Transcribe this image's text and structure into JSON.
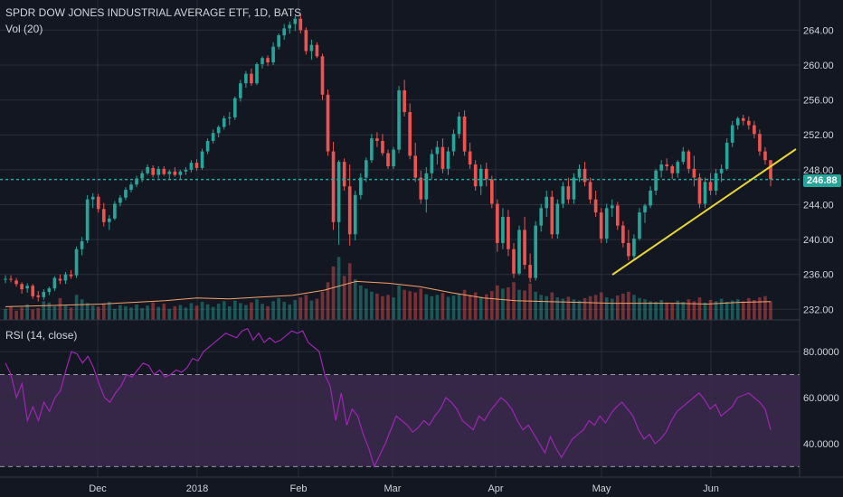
{
  "chart_data": [
    {
      "type": "candlestick",
      "title": "SPDR DOW JONES INDUSTRIAL AVERAGE ETF, 1D, BATS",
      "volume_label": "Vol (20)",
      "last_price": "246.88",
      "y_ticks": [
        "264.00",
        "260.00",
        "256.00",
        "252.00",
        "248.00",
        "244.00",
        "240.00",
        "236.00",
        "232.00"
      ],
      "x_ticks": [
        "Dec",
        "2018",
        "Feb",
        "Mar",
        "Apr",
        "May",
        "Jun"
      ],
      "ylim": [
        231,
        266
      ],
      "candles": [
        [
          235.5,
          235.9,
          235.0,
          235.5
        ],
        [
          235.5,
          235.9,
          235.1,
          235.4
        ],
        [
          235.3,
          235.6,
          234.6,
          234.9
        ],
        [
          234.9,
          235.1,
          233.8,
          234.3
        ],
        [
          234.4,
          235.0,
          233.9,
          234.7
        ],
        [
          234.7,
          234.9,
          233.2,
          233.5
        ],
        [
          233.6,
          234.1,
          232.9,
          233.4
        ],
        [
          233.4,
          234.3,
          233.1,
          234.0
        ],
        [
          234.0,
          234.6,
          233.6,
          234.4
        ],
        [
          234.4,
          235.8,
          234.1,
          235.6
        ],
        [
          235.5,
          236.0,
          234.9,
          235.3
        ],
        [
          235.3,
          236.3,
          234.9,
          236.0
        ],
        [
          236.0,
          236.5,
          235.5,
          235.8
        ],
        [
          235.9,
          239.2,
          235.6,
          238.9
        ],
        [
          238.9,
          240.3,
          238.2,
          239.8
        ],
        [
          239.9,
          245.1,
          239.6,
          244.6
        ],
        [
          244.6,
          245.3,
          243.6,
          244.9
        ],
        [
          244.9,
          245.2,
          243.1,
          243.5
        ],
        [
          243.5,
          244.2,
          241.5,
          242.0
        ],
        [
          242.0,
          242.8,
          241.1,
          242.4
        ],
        [
          242.4,
          244.4,
          242.2,
          244.1
        ],
        [
          244.2,
          245.1,
          243.8,
          244.8
        ],
        [
          244.8,
          246.0,
          244.5,
          245.7
        ],
        [
          245.7,
          246.6,
          245.4,
          246.3
        ],
        [
          246.3,
          247.3,
          246.0,
          247.0
        ],
        [
          247.0,
          247.9,
          246.6,
          247.6
        ],
        [
          247.6,
          248.6,
          247.4,
          248.3
        ],
        [
          248.2,
          248.5,
          247.1,
          247.4
        ],
        [
          247.4,
          248.4,
          247.0,
          248.1
        ],
        [
          248.1,
          248.4,
          247.3,
          247.5
        ],
        [
          247.5,
          248.0,
          246.8,
          247.8
        ],
        [
          247.8,
          248.3,
          247.2,
          247.4
        ],
        [
          247.4,
          248.0,
          246.9,
          247.8
        ],
        [
          247.8,
          248.3,
          247.4,
          248.0
        ],
        [
          248.0,
          249.1,
          247.7,
          248.8
        ],
        [
          248.8,
          249.2,
          247.9,
          248.2
        ],
        [
          248.2,
          250.4,
          248.0,
          250.1
        ],
        [
          250.1,
          251.6,
          249.8,
          251.3
        ],
        [
          251.3,
          252.6,
          251.0,
          252.2
        ],
        [
          252.2,
          253.1,
          251.7,
          252.9
        ],
        [
          252.9,
          254.2,
          252.6,
          253.9
        ],
        [
          253.9,
          254.6,
          253.1,
          254.0
        ],
        [
          254.0,
          256.4,
          253.7,
          256.2
        ],
        [
          256.2,
          258.3,
          255.8,
          257.9
        ],
        [
          257.9,
          259.3,
          257.4,
          259.0
        ],
        [
          259.0,
          259.6,
          257.6,
          257.9
        ],
        [
          257.9,
          260.3,
          257.7,
          260.1
        ],
        [
          260.1,
          261.0,
          259.6,
          260.8
        ],
        [
          260.8,
          261.1,
          259.9,
          260.3
        ],
        [
          260.3,
          262.6,
          260.0,
          262.1
        ],
        [
          262.1,
          263.6,
          261.8,
          263.4
        ],
        [
          263.4,
          264.7,
          262.9,
          264.2
        ],
        [
          264.2,
          265.0,
          263.6,
          264.6
        ],
        [
          264.7,
          265.6,
          263.9,
          265.3
        ],
        [
          265.3,
          265.8,
          263.6,
          264.0
        ],
        [
          264.0,
          264.3,
          261.2,
          261.6
        ],
        [
          261.6,
          262.9,
          260.6,
          262.3
        ],
        [
          262.3,
          262.6,
          260.8,
          261.0
        ],
        [
          261.0,
          261.3,
          256.0,
          256.6
        ],
        [
          256.6,
          257.2,
          249.6,
          250.1
        ],
        [
          250.1,
          251.2,
          241.1,
          242.0
        ],
        [
          242.0,
          249.1,
          239.4,
          248.9
        ],
        [
          248.9,
          249.3,
          245.6,
          246.1
        ],
        [
          246.1,
          248.6,
          239.3,
          240.6
        ],
        [
          240.6,
          245.6,
          239.9,
          245.1
        ],
        [
          245.1,
          247.6,
          244.6,
          247.1
        ],
        [
          247.1,
          249.4,
          246.6,
          249.1
        ],
        [
          249.1,
          252.1,
          248.8,
          251.6
        ],
        [
          251.6,
          252.3,
          250.6,
          251.3
        ],
        [
          251.3,
          252.1,
          249.6,
          249.9
        ],
        [
          249.9,
          250.3,
          248.1,
          248.4
        ],
        [
          248.4,
          250.6,
          248.1,
          250.3
        ],
        [
          250.3,
          257.6,
          249.9,
          257.1
        ],
        [
          257.1,
          258.3,
          254.1,
          254.6
        ],
        [
          254.6,
          255.6,
          249.2,
          249.6
        ],
        [
          249.6,
          251.1,
          246.6,
          247.1
        ],
        [
          247.1,
          247.9,
          244.1,
          244.6
        ],
        [
          244.6,
          248.3,
          243.1,
          247.6
        ],
        [
          247.6,
          250.3,
          246.9,
          249.8
        ],
        [
          249.8,
          251.3,
          248.6,
          250.6
        ],
        [
          250.6,
          251.6,
          247.6,
          248.1
        ],
        [
          248.1,
          250.6,
          247.4,
          250.1
        ],
        [
          250.1,
          252.6,
          249.6,
          252.1
        ],
        [
          252.1,
          254.6,
          251.6,
          254.1
        ],
        [
          254.1,
          254.8,
          249.6,
          250.1
        ],
        [
          250.1,
          251.1,
          248.1,
          248.6
        ],
        [
          248.6,
          249.1,
          245.6,
          246.1
        ],
        [
          246.1,
          248.6,
          245.1,
          248.1
        ],
        [
          248.1,
          248.8,
          246.1,
          246.9
        ],
        [
          246.9,
          247.3,
          243.6,
          244.1
        ],
        [
          244.1,
          244.6,
          238.6,
          239.6
        ],
        [
          239.6,
          243.6,
          238.9,
          242.6
        ],
        [
          242.6,
          243.4,
          238.1,
          238.9
        ],
        [
          238.9,
          239.6,
          235.6,
          236.1
        ],
        [
          236.1,
          241.6,
          235.9,
          241.1
        ],
        [
          241.1,
          242.6,
          236.6,
          237.1
        ],
        [
          237.1,
          238.4,
          235.1,
          235.6
        ],
        [
          235.6,
          242.1,
          235.3,
          241.6
        ],
        [
          241.6,
          244.1,
          240.9,
          243.6
        ],
        [
          243.6,
          245.6,
          242.6,
          244.9
        ],
        [
          244.9,
          245.6,
          240.1,
          240.6
        ],
        [
          240.6,
          244.6,
          240.1,
          244.1
        ],
        [
          244.1,
          246.6,
          243.6,
          246.1
        ],
        [
          246.1,
          247.1,
          244.1,
          244.6
        ],
        [
          244.6,
          247.6,
          244.1,
          247.1
        ],
        [
          247.1,
          248.6,
          246.6,
          248.1
        ],
        [
          248.1,
          248.9,
          246.1,
          246.6
        ],
        [
          246.6,
          247.1,
          244.1,
          244.6
        ],
        [
          244.6,
          245.6,
          242.6,
          243.1
        ],
        [
          243.1,
          243.6,
          239.6,
          240.1
        ],
        [
          240.1,
          244.1,
          239.6,
          243.6
        ],
        [
          243.6,
          244.6,
          242.6,
          243.9
        ],
        [
          243.9,
          244.3,
          241.1,
          241.6
        ],
        [
          241.6,
          242.1,
          239.1,
          239.6
        ],
        [
          239.6,
          241.1,
          237.6,
          238.1
        ],
        [
          238.1,
          240.6,
          237.6,
          240.1
        ],
        [
          240.1,
          243.6,
          239.9,
          243.1
        ],
        [
          243.1,
          244.1,
          241.9,
          243.9
        ],
        [
          243.9,
          246.1,
          243.6,
          245.6
        ],
        [
          245.6,
          248.1,
          245.1,
          247.9
        ],
        [
          247.9,
          249.1,
          247.1,
          248.6
        ],
        [
          248.6,
          249.3,
          247.9,
          248.4
        ],
        [
          248.4,
          248.6,
          246.9,
          247.6
        ],
        [
          247.6,
          249.1,
          247.1,
          248.9
        ],
        [
          248.9,
          250.6,
          248.6,
          250.1
        ],
        [
          250.1,
          250.3,
          247.6,
          248.1
        ],
        [
          248.1,
          249.6,
          246.1,
          247.1
        ],
        [
          247.1,
          247.6,
          243.6,
          244.1
        ],
        [
          244.1,
          247.1,
          243.6,
          246.6
        ],
        [
          246.6,
          247.6,
          245.1,
          245.6
        ],
        [
          245.6,
          248.1,
          245.1,
          247.6
        ],
        [
          247.6,
          248.6,
          246.6,
          248.1
        ],
        [
          248.1,
          251.6,
          247.9,
          251.1
        ],
        [
          251.1,
          253.6,
          250.6,
          253.1
        ],
        [
          253.1,
          254.1,
          252.6,
          253.9
        ],
        [
          253.9,
          254.3,
          253.1,
          253.6
        ],
        [
          253.6,
          254.1,
          252.6,
          253.1
        ],
        [
          253.1,
          253.6,
          251.6,
          252.1
        ],
        [
          252.1,
          252.6,
          249.6,
          250.1
        ],
        [
          250.1,
          250.6,
          248.6,
          249.1
        ],
        [
          249.1,
          249.1,
          246.1,
          246.9
        ]
      ],
      "volume_ma_values": [
        232.3,
        232.4,
        232.5,
        232.6,
        232.8,
        233.0,
        233.3,
        233.2,
        233.4,
        233.6,
        234.2,
        235.2,
        235.0,
        234.6,
        233.9,
        233.3,
        233.0,
        232.9,
        232.8,
        232.7,
        232.7,
        232.7,
        232.6,
        232.8,
        232.9
      ],
      "volume_relative": [
        0.18,
        0.22,
        0.15,
        0.2,
        0.25,
        0.17,
        0.19,
        0.3,
        0.28,
        0.22,
        0.35,
        0.24,
        0.2,
        0.4,
        0.33,
        0.27,
        0.23,
        0.21,
        0.26,
        0.29,
        0.18,
        0.24,
        0.22,
        0.2,
        0.25,
        0.19,
        0.23,
        0.28,
        0.21,
        0.26,
        0.18,
        0.22,
        0.24,
        0.2,
        0.27,
        0.23,
        0.29,
        0.25,
        0.21,
        0.26,
        0.3,
        0.22,
        0.31,
        0.27,
        0.24,
        0.28,
        0.33,
        0.26,
        0.22,
        0.3,
        0.35,
        0.29,
        0.25,
        0.32,
        0.36,
        0.4,
        0.31,
        0.34,
        0.45,
        0.6,
        0.85,
        1.0,
        0.7,
        0.9,
        0.65,
        0.55,
        0.5,
        0.45,
        0.42,
        0.38,
        0.4,
        0.36,
        0.55,
        0.48,
        0.46,
        0.44,
        0.5,
        0.41,
        0.38,
        0.4,
        0.43,
        0.37,
        0.39,
        0.42,
        0.48,
        0.4,
        0.44,
        0.37,
        0.41,
        0.46,
        0.55,
        0.5,
        0.52,
        0.6,
        0.48,
        0.47,
        0.58,
        0.45,
        0.4,
        0.38,
        0.44,
        0.36,
        0.34,
        0.37,
        0.33,
        0.31,
        0.35,
        0.38,
        0.4,
        0.44,
        0.36,
        0.34,
        0.39,
        0.42,
        0.45,
        0.4,
        0.35,
        0.33,
        0.3,
        0.29,
        0.32,
        0.28,
        0.27,
        0.31,
        0.29,
        0.33,
        0.3,
        0.36,
        0.28,
        0.32,
        0.3,
        0.34,
        0.29,
        0.31,
        0.33,
        0.3,
        0.35,
        0.32,
        0.36,
        0.38,
        0.3
      ]
    },
    {
      "type": "line",
      "title": "RSI (14, close)",
      "y_ticks": [
        "80.0000",
        "60.0000",
        "40.0000"
      ],
      "ylim": [
        27,
        93
      ],
      "upper_band": 70,
      "lower_band": 30,
      "values": [
        75,
        70,
        60,
        66,
        50,
        56,
        50,
        58,
        54,
        60,
        63,
        72,
        80,
        79,
        75,
        78,
        73,
        66,
        60,
        58,
        62,
        65,
        70,
        69,
        72,
        75,
        74,
        70,
        72,
        69,
        70,
        72,
        71,
        73,
        77,
        76,
        80,
        82,
        84,
        86,
        88,
        87,
        86,
        89,
        90,
        85,
        88,
        84,
        86,
        84,
        85,
        87,
        89,
        88,
        89,
        84,
        82,
        80,
        70,
        65,
        50,
        62,
        48,
        55,
        52,
        44,
        38,
        30,
        35,
        40,
        46,
        52,
        50,
        48,
        45,
        47,
        50,
        48,
        52,
        55,
        60,
        58,
        55,
        50,
        48,
        46,
        52,
        50,
        54,
        57,
        60,
        58,
        55,
        50,
        46,
        48,
        44,
        40,
        36,
        43,
        38,
        34,
        38,
        42,
        44,
        46,
        50,
        48,
        52,
        49,
        53,
        56,
        58,
        55,
        52,
        46,
        42,
        44,
        40,
        42,
        45,
        50,
        54,
        56,
        58,
        60,
        62,
        59,
        55,
        57,
        52,
        54,
        56,
        60,
        61,
        62,
        60,
        58,
        55,
        46
      ]
    }
  ],
  "colors": {
    "background": "#131722",
    "up": "#26a69a",
    "down": "#ef5350",
    "grid": "#2a2e39",
    "axis_text": "#d1d4dc",
    "trendline": "#e8d534",
    "rsi_line": "#9c27b0",
    "rsi_band_fill": "#3d2a4f",
    "volume_ma": "#f6a26a"
  }
}
